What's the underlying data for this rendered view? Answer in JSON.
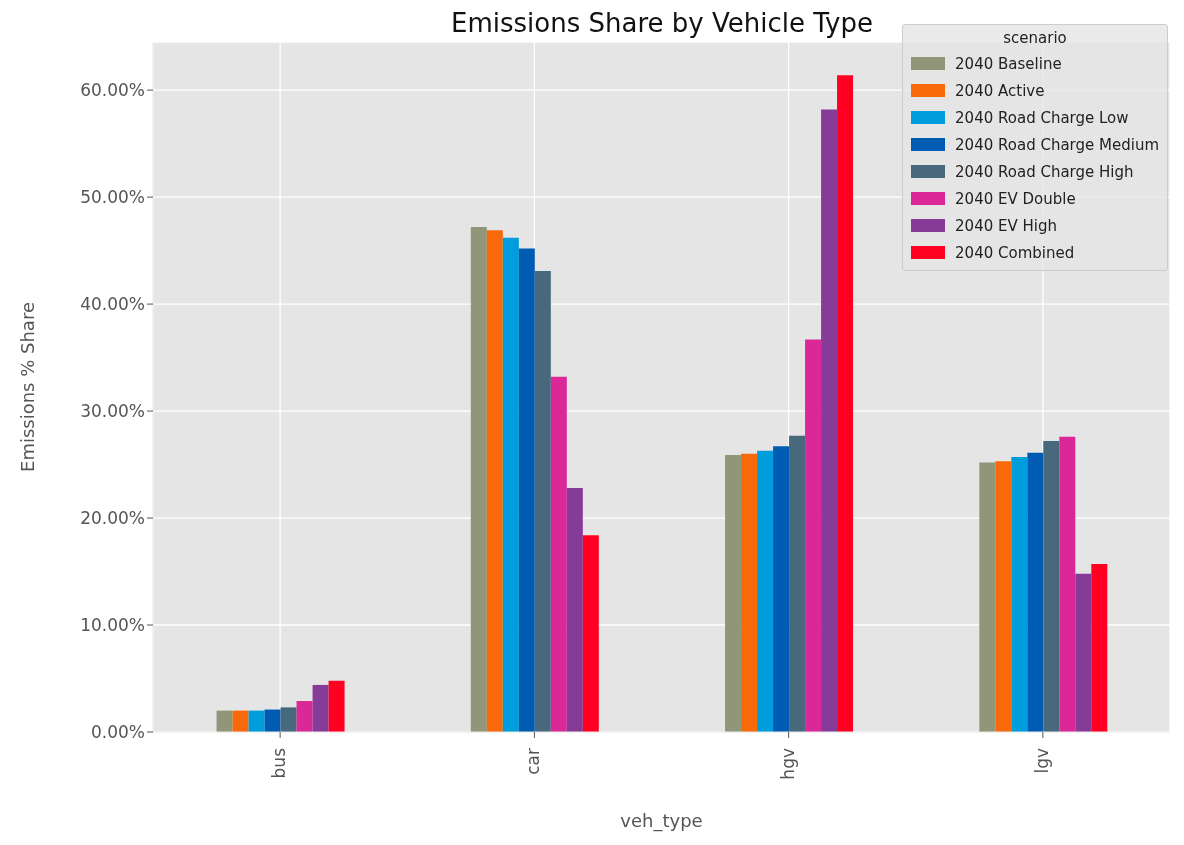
{
  "chart_data": {
    "type": "bar",
    "title": "Emissions Share by Vehicle Type",
    "xlabel": "veh_type",
    "ylabel": "Emissions % Share",
    "legend_title": "scenario",
    "categories": [
      "bus",
      "car",
      "hgv",
      "lgv"
    ],
    "series": [
      {
        "name": "2040 Baseline",
        "color": "#929679",
        "values": [
          2.0,
          47.2,
          25.9,
          25.2
        ]
      },
      {
        "name": "2040 Active",
        "color": "#f8690a",
        "values": [
          2.0,
          46.9,
          26.0,
          25.3
        ]
      },
      {
        "name": "2040 Road Charge Low",
        "color": "#009ddc",
        "values": [
          2.0,
          46.2,
          26.3,
          25.7
        ]
      },
      {
        "name": "2040 Road Charge Medium",
        "color": "#005cb2",
        "values": [
          2.1,
          45.2,
          26.7,
          26.1
        ]
      },
      {
        "name": "2040 Road Charge High",
        "color": "#48687e",
        "values": [
          2.3,
          43.1,
          27.7,
          27.2
        ]
      },
      {
        "name": "2040 EV Double",
        "color": "#db2899",
        "values": [
          2.9,
          33.2,
          36.7,
          27.6
        ]
      },
      {
        "name": "2040 EV High",
        "color": "#873b98",
        "values": [
          4.4,
          22.8,
          58.2,
          14.8
        ]
      },
      {
        "name": "2040 Combined",
        "color": "#ff0022",
        "values": [
          4.8,
          18.4,
          61.4,
          15.7
        ]
      }
    ],
    "ylim": [
      0,
      64.5
    ],
    "yticks": [
      {
        "value": 0,
        "label": "0.00%"
      },
      {
        "value": 10,
        "label": "10.00%"
      },
      {
        "value": 20,
        "label": "20.00%"
      },
      {
        "value": 30,
        "label": "30.00%"
      },
      {
        "value": 40,
        "label": "40.00%"
      },
      {
        "value": 50,
        "label": "50.00%"
      },
      {
        "value": 60,
        "label": "60.00%"
      }
    ],
    "grid": true,
    "legend": "top right"
  }
}
